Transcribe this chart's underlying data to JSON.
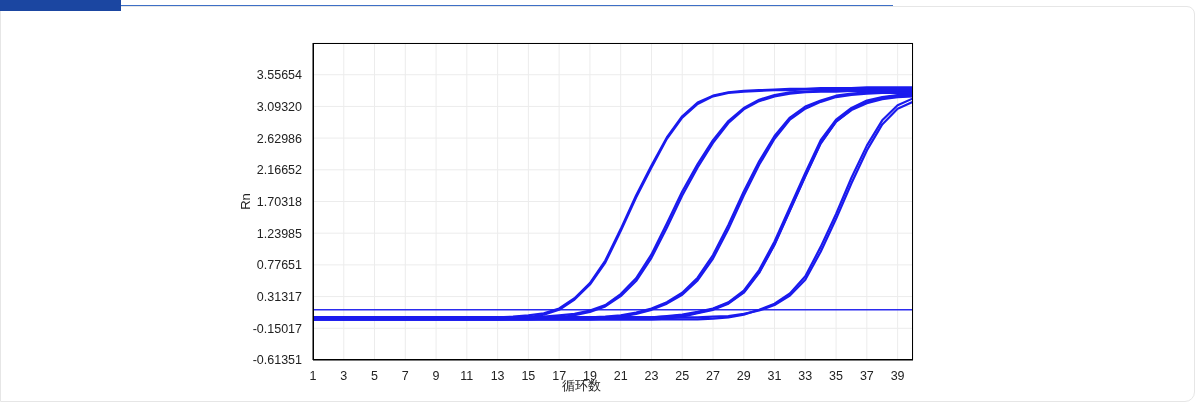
{
  "chart_data": {
    "type": "line",
    "xlabel": "循环数",
    "ylabel": "Rn",
    "x": [
      1,
      2,
      3,
      4,
      5,
      6,
      7,
      8,
      9,
      10,
      11,
      12,
      13,
      14,
      15,
      16,
      17,
      18,
      19,
      20,
      21,
      22,
      23,
      24,
      25,
      26,
      27,
      28,
      29,
      30,
      31,
      32,
      33,
      34,
      35,
      36,
      37,
      38,
      39,
      40
    ],
    "xlim": [
      1,
      40
    ],
    "xticks": [
      1,
      3,
      5,
      7,
      9,
      11,
      13,
      15,
      17,
      19,
      21,
      23,
      25,
      27,
      29,
      31,
      33,
      35,
      37,
      39
    ],
    "ylim": [
      -0.61351,
      4.02
    ],
    "yticks": [
      -0.61351,
      -0.15017,
      0.31317,
      0.77651,
      1.23985,
      1.70318,
      2.16652,
      2.62986,
      {
        "value": 3.0932,
        "label": "3.09320"
      },
      3.55654
    ],
    "grid": true,
    "ref_lines": [
      {
        "axis": "y",
        "value": 0.12,
        "color": "#2b2bef"
      }
    ],
    "series": [
      {
        "color": "#1a1aee",
        "values": [
          0.01,
          0.01,
          0.01,
          0.01,
          0.01,
          0.01,
          0.01,
          0.01,
          0.01,
          0.01,
          0.01,
          0.01,
          0.01,
          0.02,
          0.04,
          0.07,
          0.14,
          0.29,
          0.51,
          0.84,
          1.3,
          1.79,
          2.23,
          2.64,
          2.95,
          3.15,
          3.25,
          3.3,
          3.32,
          3.33,
          3.34,
          3.35,
          3.35,
          3.36,
          3.36,
          3.36,
          3.37,
          3.37,
          3.37,
          3.37
        ]
      },
      {
        "color": "#1a1aee",
        "values": [
          -0.02,
          -0.02,
          -0.02,
          -0.02,
          -0.02,
          -0.02,
          -0.02,
          -0.02,
          -0.02,
          -0.02,
          -0.02,
          -0.02,
          -0.02,
          -0.01,
          0.01,
          0.05,
          0.12,
          0.27,
          0.49,
          0.81,
          1.27,
          1.76,
          2.2,
          2.62,
          2.93,
          3.13,
          3.24,
          3.29,
          3.31,
          3.32,
          3.33,
          3.33,
          3.34,
          3.34,
          3.35,
          3.35,
          3.35,
          3.35,
          3.35,
          3.35
        ]
      },
      {
        "color": "#1a1aee",
        "values": [
          0.01,
          0.01,
          0.01,
          0.01,
          0.01,
          0.01,
          0.01,
          0.01,
          0.01,
          0.01,
          0.01,
          0.01,
          0.01,
          0.01,
          0.01,
          0.02,
          0.04,
          0.06,
          0.11,
          0.19,
          0.35,
          0.58,
          0.93,
          1.38,
          1.85,
          2.25,
          2.6,
          2.88,
          3.07,
          3.19,
          3.26,
          3.3,
          3.31,
          3.32,
          3.32,
          3.33,
          3.33,
          3.34,
          3.34,
          3.34
        ]
      },
      {
        "color": "#1a1aee",
        "values": [
          -0.02,
          -0.02,
          -0.02,
          -0.02,
          -0.02,
          -0.02,
          -0.02,
          -0.02,
          -0.02,
          -0.02,
          -0.02,
          -0.02,
          -0.02,
          -0.02,
          -0.02,
          -0.01,
          0.01,
          0.04,
          0.09,
          0.17,
          0.32,
          0.54,
          0.88,
          1.32,
          1.79,
          2.2,
          2.56,
          2.85,
          3.05,
          3.17,
          3.24,
          3.28,
          3.3,
          3.31,
          3.31,
          3.32,
          3.32,
          3.32,
          3.32,
          3.32
        ]
      },
      {
        "color": "#1a1aee",
        "values": [
          0.01,
          0.01,
          0.01,
          0.01,
          0.01,
          0.01,
          0.01,
          0.01,
          0.01,
          0.01,
          0.01,
          0.01,
          0.01,
          0.01,
          0.01,
          0.01,
          0.01,
          0.01,
          0.01,
          0.02,
          0.04,
          0.08,
          0.14,
          0.23,
          0.37,
          0.59,
          0.92,
          1.36,
          1.85,
          2.29,
          2.66,
          2.93,
          3.09,
          3.18,
          3.25,
          3.28,
          3.3,
          3.31,
          3.31,
          3.31
        ]
      },
      {
        "color": "#1a1aee",
        "values": [
          -0.02,
          -0.02,
          -0.02,
          -0.02,
          -0.02,
          -0.02,
          -0.02,
          -0.02,
          -0.02,
          -0.02,
          -0.02,
          -0.02,
          -0.02,
          -0.02,
          -0.02,
          -0.02,
          -0.02,
          -0.02,
          -0.02,
          -0.01,
          0.02,
          0.06,
          0.12,
          0.21,
          0.34,
          0.55,
          0.87,
          1.3,
          1.79,
          2.24,
          2.62,
          2.9,
          3.06,
          3.16,
          3.23,
          3.26,
          3.28,
          3.29,
          3.29,
          3.29
        ]
      },
      {
        "color": "#1a1aee",
        "values": [
          0.01,
          0.01,
          0.01,
          0.01,
          0.01,
          0.01,
          0.01,
          0.01,
          0.01,
          0.01,
          0.01,
          0.01,
          0.01,
          0.01,
          0.01,
          0.01,
          0.01,
          0.01,
          0.01,
          0.01,
          0.01,
          0.01,
          0.01,
          0.03,
          0.05,
          0.09,
          0.14,
          0.23,
          0.4,
          0.7,
          1.12,
          1.62,
          2.12,
          2.6,
          2.9,
          3.07,
          3.18,
          3.23,
          3.26,
          3.28
        ]
      },
      {
        "color": "#1a1aee",
        "values": [
          -0.02,
          -0.02,
          -0.02,
          -0.02,
          -0.02,
          -0.02,
          -0.02,
          -0.02,
          -0.02,
          -0.02,
          -0.02,
          -0.02,
          -0.02,
          -0.02,
          -0.02,
          -0.02,
          -0.02,
          -0.02,
          -0.02,
          -0.02,
          -0.02,
          -0.02,
          -0.02,
          -0.01,
          0.02,
          0.07,
          0.12,
          0.21,
          0.37,
          0.66,
          1.07,
          1.57,
          2.07,
          2.55,
          2.87,
          3.05,
          3.16,
          3.22,
          3.25,
          3.26
        ]
      },
      {
        "color": "#1a1aee",
        "values": [
          0.01,
          0.01,
          0.01,
          0.01,
          0.01,
          0.01,
          0.01,
          0.01,
          0.01,
          0.01,
          0.01,
          0.01,
          0.01,
          0.01,
          0.01,
          0.01,
          0.01,
          0.01,
          0.01,
          0.01,
          0.01,
          0.01,
          0.01,
          0.02,
          0.04,
          0.08,
          0.13,
          0.22,
          0.38,
          0.67,
          1.08,
          1.58,
          2.08,
          2.56,
          2.87,
          3.04,
          3.14,
          3.2,
          3.23,
          3.24
        ]
      },
      {
        "color": "#1a1aee",
        "values": [
          -0.02,
          -0.02,
          -0.02,
          -0.02,
          -0.02,
          -0.02,
          -0.02,
          -0.02,
          -0.02,
          -0.02,
          -0.02,
          -0.02,
          -0.02,
          -0.02,
          -0.02,
          -0.02,
          -0.02,
          -0.02,
          -0.02,
          -0.02,
          -0.02,
          -0.02,
          -0.02,
          -0.02,
          -0.02,
          -0.02,
          -0.01,
          0.01,
          0.05,
          0.12,
          0.21,
          0.36,
          0.61,
          1.04,
          1.52,
          2.05,
          2.52,
          2.89,
          3.11,
          3.21
        ]
      },
      {
        "color": "#1a1aee",
        "values": [
          0.01,
          0.01,
          0.01,
          0.01,
          0.01,
          0.01,
          0.01,
          0.01,
          0.01,
          0.01,
          0.01,
          0.01,
          0.01,
          0.01,
          0.01,
          0.01,
          0.01,
          0.01,
          0.01,
          0.01,
          0.01,
          0.01,
          0.01,
          0.01,
          0.01,
          0.01,
          0.02,
          0.03,
          0.06,
          0.11,
          0.19,
          0.33,
          0.56,
          0.97,
          1.45,
          1.97,
          2.45,
          2.83,
          3.06,
          3.16
        ]
      }
    ]
  }
}
